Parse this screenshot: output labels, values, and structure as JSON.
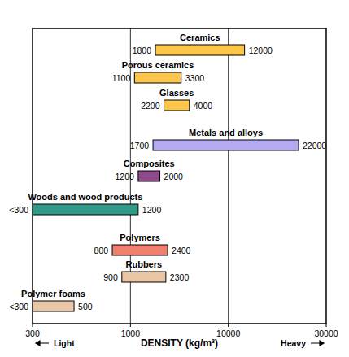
{
  "chart_data": {
    "type": "bar",
    "orientation": "horizontal",
    "categories": [
      "Ceramics",
      "Porous ceramics",
      "Glasses",
      "Metals and alloys",
      "Composites",
      "Woods and wood products",
      "Polymers",
      "Rubbers",
      "Polymer foams"
    ],
    "lows": [
      1800,
      1100,
      2200,
      1700,
      1200,
      300,
      800,
      900,
      300
    ],
    "low_labels": [
      "1800",
      "1100",
      "2200",
      "1700",
      "1200",
      "<300",
      "800",
      "900",
      "<300"
    ],
    "values": [
      12000,
      3300,
      4000,
      22000,
      2000,
      1200,
      2400,
      2300,
      500
    ],
    "colors": [
      "#fcc64c",
      "#fcc64c",
      "#fcc64c",
      "#b4aaf2",
      "#8e4a8c",
      "#2f9b88",
      "#f0806e",
      "#e9c6a6",
      "#e9c6a6"
    ],
    "xlabel": "DENSITY (kg/m³)",
    "annotations": [
      "Light",
      "Heavy"
    ],
    "xlim": [
      300,
      30000
    ],
    "xticks": [
      300,
      1000,
      10000,
      30000
    ],
    "log": "x",
    "grid": true,
    "data_labels": true
  }
}
